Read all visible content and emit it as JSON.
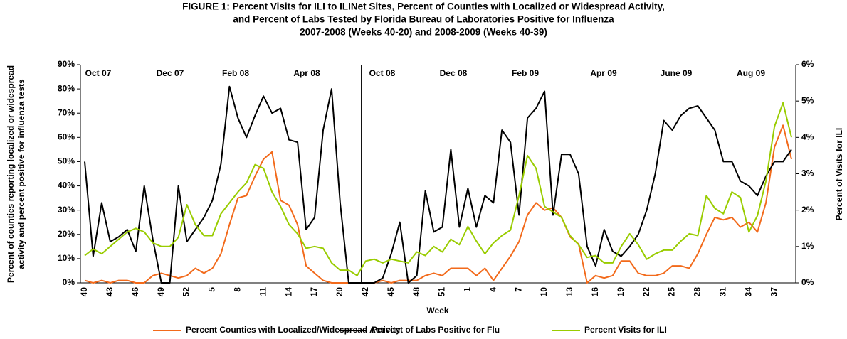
{
  "chart_data": {
    "type": "line",
    "title": [
      "FIGURE 1:  Percent Visits for ILI to ILINet Sites, Percent of Counties with Localized or Widespread Activity,",
      "and Percent of Labs Tested by Florida Bureau of Laboratories Positive for Influenza",
      "2007-2008 (Weeks 40-20) and 2008-2009 (Weeks 40-39)"
    ],
    "y_label": [
      "Percent of counties reporting localized or widespread",
      "activity and percent positive for influenza tests"
    ],
    "y2_label": "Percent of Visits for ILI",
    "x_label": "Week",
    "annotations": [
      "Oct 07",
      "Dec 07",
      "Feb 08",
      "Apr 08",
      "Oct 08",
      "Dec 08",
      "Feb 09",
      "Apr 09",
      "June 09",
      "Aug 09"
    ],
    "categories": [
      "40",
      null,
      null,
      "43",
      null,
      null,
      "46",
      null,
      null,
      "49",
      null,
      null,
      "52",
      null,
      null,
      "5",
      null,
      null,
      "8",
      null,
      null,
      "11",
      null,
      null,
      "14",
      null,
      null,
      "17",
      null,
      null,
      "20",
      null,
      null,
      "42",
      null,
      null,
      "45",
      null,
      null,
      "48",
      null,
      null,
      "51",
      null,
      null,
      "1",
      null,
      null,
      "4",
      null,
      null,
      "7",
      null,
      null,
      "10",
      null,
      null,
      "13",
      null,
      null,
      "16",
      null,
      null,
      "19",
      null,
      null,
      "22",
      null,
      null,
      "25",
      null,
      null,
      "28",
      null,
      null,
      "31",
      null,
      null,
      "34",
      null,
      null,
      "37",
      null,
      null
    ],
    "series": [
      {
        "name": "Percent Counties with Localized/Widespread Activity",
        "color": "#f26a1b",
        "axis": "y",
        "values": [
          1,
          0,
          1,
          0,
          1,
          1,
          0,
          0,
          3,
          4,
          3,
          2,
          3,
          6,
          4,
          6,
          12,
          24,
          35,
          36,
          44,
          51,
          54,
          34,
          32,
          24,
          7,
          4,
          1,
          0,
          0,
          0,
          0,
          0,
          0,
          1,
          0,
          1,
          1,
          1,
          3,
          4,
          3,
          6,
          6,
          6,
          3,
          6,
          1,
          6,
          11,
          17,
          28,
          33,
          30,
          31,
          27,
          19,
          16,
          0,
          3,
          2,
          3,
          9,
          9,
          4,
          3,
          3,
          4,
          7,
          7,
          6,
          12,
          20,
          27,
          26,
          27,
          23,
          25,
          21,
          33,
          56,
          65,
          51
        ]
      },
      {
        "name": "Percent of Labs Positive for Flu",
        "color": "#000000",
        "axis": "y",
        "values": [
          50,
          11,
          33,
          17,
          19,
          22,
          13,
          40,
          18,
          0,
          0,
          40,
          17,
          22,
          27,
          34,
          49,
          81,
          68,
          60,
          69,
          77,
          70,
          72,
          59,
          58,
          22,
          27,
          63,
          80,
          33,
          0,
          0,
          0,
          0,
          2,
          12,
          25,
          0,
          3,
          38,
          21,
          23,
          55,
          23,
          39,
          23,
          36,
          33,
          63,
          58,
          28,
          68,
          72,
          79,
          28,
          53,
          53,
          45,
          15,
          7,
          22,
          13,
          11,
          15,
          20,
          30,
          45,
          67,
          63,
          69,
          72,
          73,
          68,
          63,
          50,
          50,
          42,
          40,
          36,
          44,
          50,
          50,
          55
        ]
      },
      {
        "name": "Percent Visits for ILI",
        "color": "#99cc00",
        "axis": "y2",
        "values": [
          0.75,
          0.93,
          0.8,
          1.0,
          1.2,
          1.4,
          1.5,
          1.4,
          1.1,
          1.0,
          1.0,
          1.25,
          2.15,
          1.6,
          1.3,
          1.3,
          1.9,
          2.2,
          2.5,
          2.75,
          3.25,
          3.15,
          2.5,
          2.1,
          1.6,
          1.35,
          0.95,
          1.0,
          0.95,
          0.55,
          0.35,
          0.35,
          0.2,
          0.6,
          0.65,
          0.55,
          0.65,
          0.6,
          0.55,
          0.85,
          0.75,
          1.0,
          0.85,
          1.2,
          1.05,
          1.55,
          1.15,
          0.8,
          1.1,
          1.3,
          1.45,
          2.4,
          3.5,
          3.15,
          2.1,
          1.95,
          1.8,
          1.3,
          1.05,
          0.7,
          0.75,
          0.55,
          0.55,
          1.0,
          1.35,
          1.05,
          0.65,
          0.8,
          0.9,
          0.9,
          1.15,
          1.35,
          1.3,
          2.4,
          2.05,
          1.9,
          2.5,
          2.35,
          1.4,
          1.85,
          2.8,
          4.3,
          4.95,
          4.0
        ]
      }
    ],
    "ylim": [
      0,
      90
    ],
    "yticks": [
      {
        "value": 0,
        "label": "0%"
      },
      {
        "value": 10,
        "label": "10%"
      },
      {
        "value": 20,
        "label": "20%"
      },
      {
        "value": 30,
        "label": "30%"
      },
      {
        "value": 40,
        "label": "40%"
      },
      {
        "value": 50,
        "label": "50%"
      },
      {
        "value": 60,
        "label": "60%"
      },
      {
        "value": 70,
        "label": "70%"
      },
      {
        "value": 80,
        "label": "80%"
      },
      {
        "value": 90,
        "label": "90%"
      }
    ],
    "y2lim": [
      0,
      6
    ],
    "y2ticks": [
      {
        "value": 0,
        "label": "0%"
      },
      {
        "value": 1,
        "label": "1%"
      },
      {
        "value": 2,
        "label": "2%"
      },
      {
        "value": 3,
        "label": "3%"
      },
      {
        "value": 4,
        "label": "4%"
      },
      {
        "value": 5,
        "label": "5%"
      },
      {
        "value": 6,
        "label": "6%"
      }
    ],
    "grid": false,
    "legend": "bottom"
  }
}
